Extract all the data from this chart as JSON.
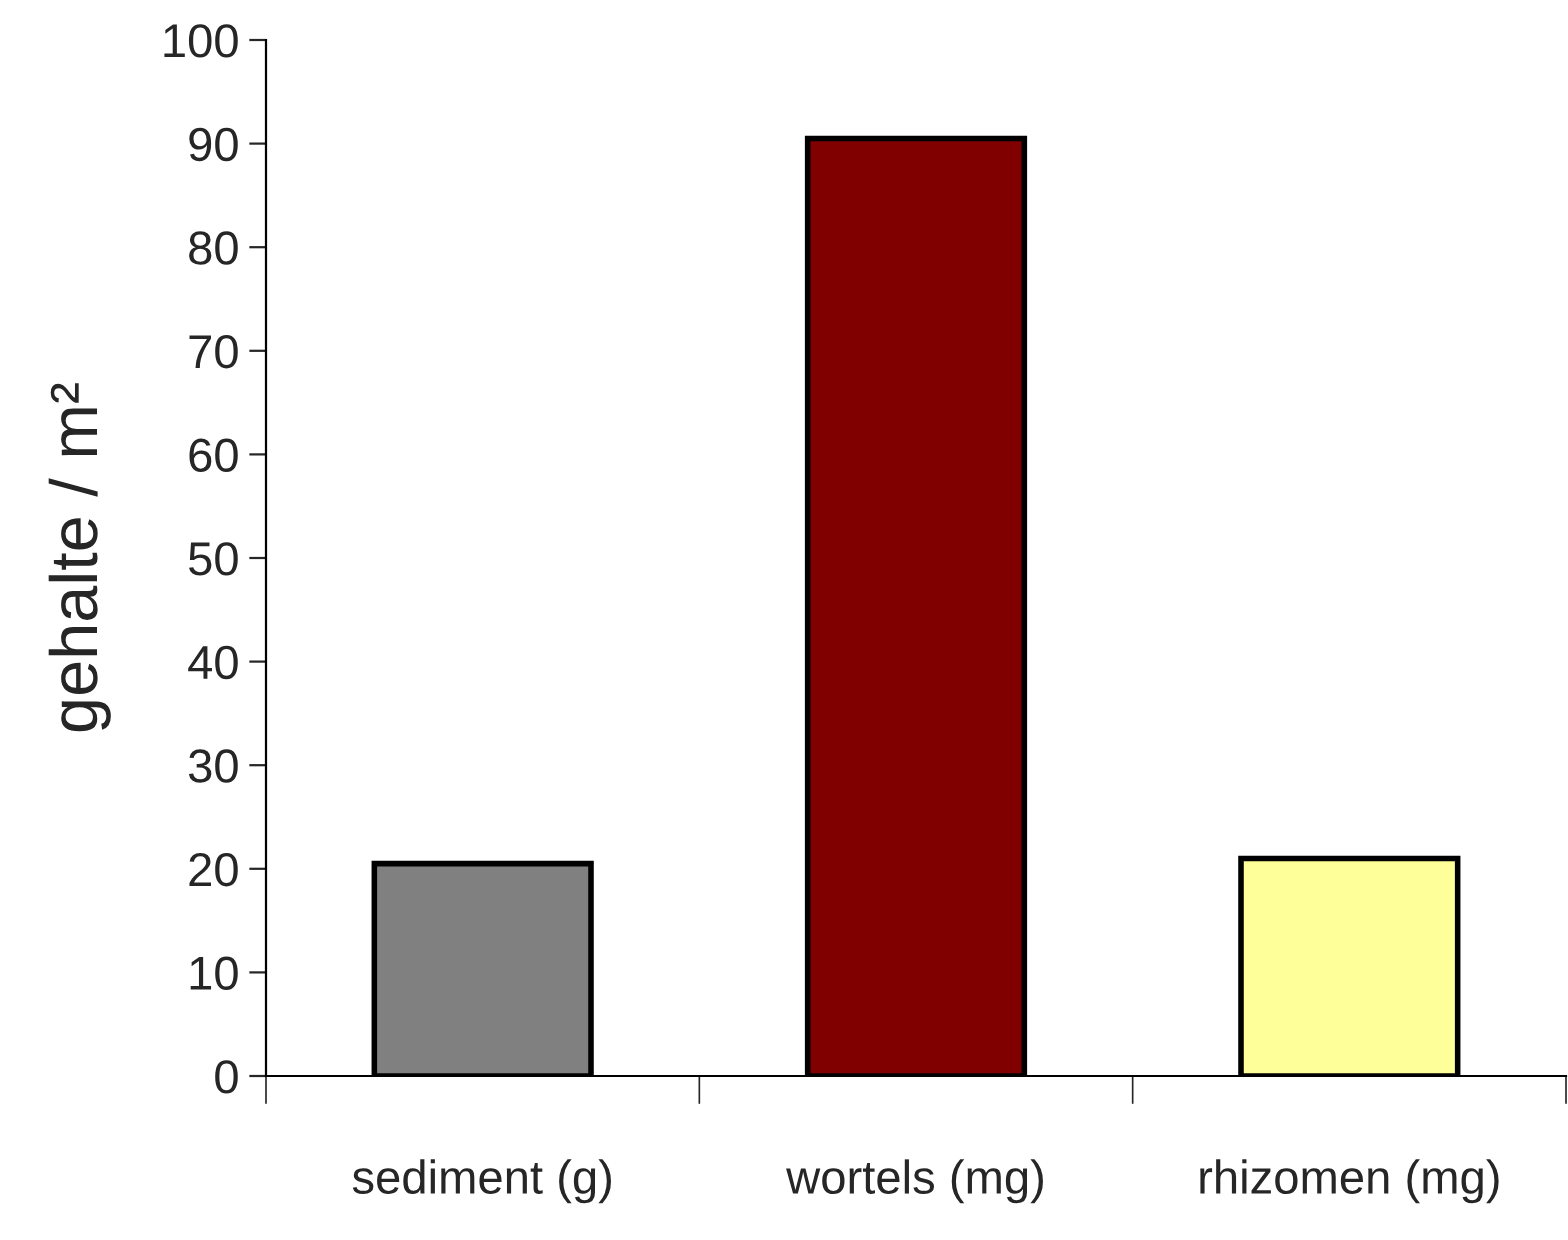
{
  "chart_data": {
    "type": "bar",
    "ylabel": "gehalte / m²",
    "categories": [
      "sediment (g)",
      "wortels (mg)",
      "rhizomen (mg)"
    ],
    "values": [
      20.5,
      90.5,
      21
    ],
    "colors": [
      "#808080",
      "#800000",
      "#ffff99"
    ],
    "ylim": [
      0,
      100
    ],
    "yticks": [
      0,
      10,
      20,
      30,
      40,
      50,
      60,
      70,
      80,
      90,
      100
    ],
    "grid": false,
    "legend": false
  }
}
